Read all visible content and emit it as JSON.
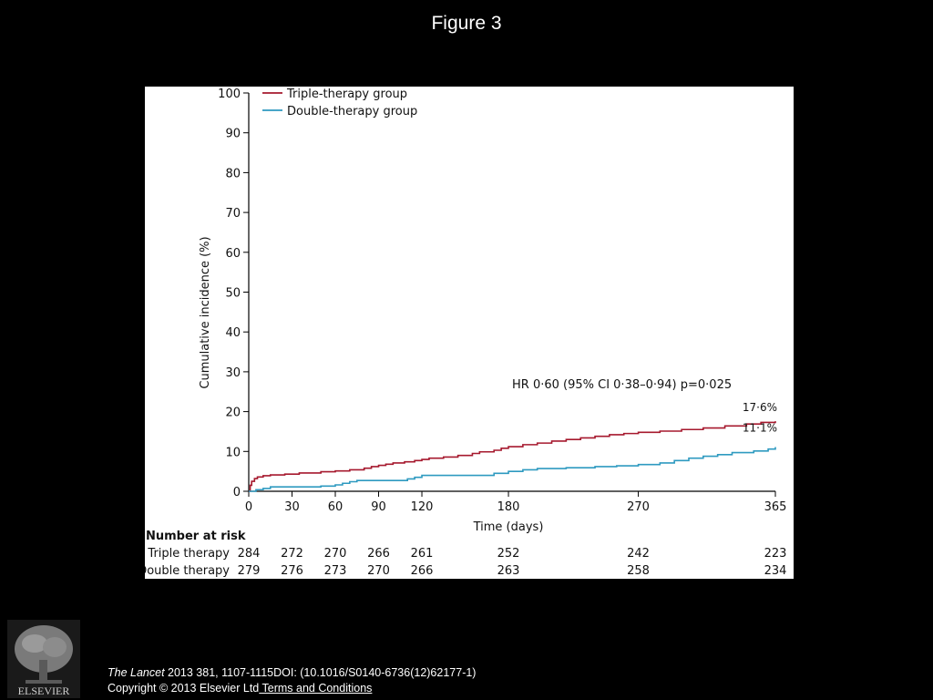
{
  "slide": {
    "title": "Figure 3"
  },
  "citation": {
    "journal": "The Lancet",
    "details": " 2013 381, 1107-1115DOI: (10.1016/S0140-6736(12)62177-1)",
    "copyright": "Copyright © 2013 Elsevier Ltd",
    "terms_link": " Terms and Conditions"
  },
  "publisher": {
    "logo_text": "ELSEVIER"
  },
  "chart_data": {
    "type": "line",
    "title": "",
    "xlabel": "Time (days)",
    "ylabel": "Cumulative incidence (%)",
    "xlim": [
      0,
      365
    ],
    "ylim": [
      0,
      100
    ],
    "x_ticks": [
      0,
      30,
      60,
      90,
      120,
      180,
      270,
      365
    ],
    "y_ticks": [
      0,
      10,
      20,
      30,
      40,
      50,
      60,
      70,
      80,
      90,
      100
    ],
    "grid": false,
    "legend_position": "top-left",
    "annotation": "HR 0·60 (95% CI 0·38–0·94) p=0·025",
    "series": [
      {
        "name": "Triple-therapy group",
        "color": "#a6192e",
        "end_label": "17·6%",
        "points": [
          [
            0,
            0
          ],
          [
            1,
            1.5
          ],
          [
            2,
            2.5
          ],
          [
            4,
            3.2
          ],
          [
            6,
            3.6
          ],
          [
            10,
            3.9
          ],
          [
            15,
            4.1
          ],
          [
            25,
            4.3
          ],
          [
            35,
            4.6
          ],
          [
            50,
            4.9
          ],
          [
            60,
            5.1
          ],
          [
            70,
            5.4
          ],
          [
            80,
            5.8
          ],
          [
            85,
            6.2
          ],
          [
            90,
            6.5
          ],
          [
            95,
            6.8
          ],
          [
            100,
            7.1
          ],
          [
            108,
            7.4
          ],
          [
            115,
            7.7
          ],
          [
            120,
            8.0
          ],
          [
            125,
            8.3
          ],
          [
            135,
            8.6
          ],
          [
            145,
            9.0
          ],
          [
            155,
            9.5
          ],
          [
            160,
            9.9
          ],
          [
            170,
            10.3
          ],
          [
            175,
            10.8
          ],
          [
            180,
            11.2
          ],
          [
            190,
            11.7
          ],
          [
            200,
            12.1
          ],
          [
            210,
            12.6
          ],
          [
            220,
            13.0
          ],
          [
            230,
            13.4
          ],
          [
            240,
            13.8
          ],
          [
            250,
            14.2
          ],
          [
            260,
            14.5
          ],
          [
            270,
            14.8
          ],
          [
            285,
            15.1
          ],
          [
            300,
            15.5
          ],
          [
            315,
            15.9
          ],
          [
            330,
            16.4
          ],
          [
            345,
            16.9
          ],
          [
            355,
            17.3
          ],
          [
            365,
            17.6
          ]
        ]
      },
      {
        "name": "Double-therapy group",
        "color": "#2e9ac0",
        "end_label": "11·1%",
        "points": [
          [
            0,
            0
          ],
          [
            5,
            0.4
          ],
          [
            10,
            0.7
          ],
          [
            15,
            1.1
          ],
          [
            30,
            1.1
          ],
          [
            40,
            1.1
          ],
          [
            50,
            1.3
          ],
          [
            60,
            1.6
          ],
          [
            65,
            2.0
          ],
          [
            70,
            2.4
          ],
          [
            75,
            2.7
          ],
          [
            90,
            2.7
          ],
          [
            105,
            2.7
          ],
          [
            110,
            3.1
          ],
          [
            115,
            3.5
          ],
          [
            120,
            4.0
          ],
          [
            140,
            4.0
          ],
          [
            160,
            4.0
          ],
          [
            170,
            4.5
          ],
          [
            180,
            5.0
          ],
          [
            190,
            5.4
          ],
          [
            200,
            5.7
          ],
          [
            220,
            5.9
          ],
          [
            240,
            6.2
          ],
          [
            255,
            6.4
          ],
          [
            270,
            6.7
          ],
          [
            285,
            7.1
          ],
          [
            295,
            7.7
          ],
          [
            305,
            8.3
          ],
          [
            315,
            8.8
          ],
          [
            325,
            9.2
          ],
          [
            335,
            9.7
          ],
          [
            350,
            10.1
          ],
          [
            360,
            10.6
          ],
          [
            365,
            11.1
          ]
        ]
      }
    ],
    "risk_table": {
      "title": "Number at risk",
      "x": [
        0,
        30,
        60,
        90,
        120,
        180,
        270,
        365
      ],
      "rows": [
        {
          "label": "Triple therapy",
          "values": [
            "284",
            "272",
            "270",
            "266",
            "261",
            "252",
            "242",
            "223"
          ]
        },
        {
          "label": "Double therapy",
          "values": [
            "279",
            "276",
            "273",
            "270",
            "266",
            "263",
            "258",
            "234"
          ]
        }
      ]
    }
  }
}
